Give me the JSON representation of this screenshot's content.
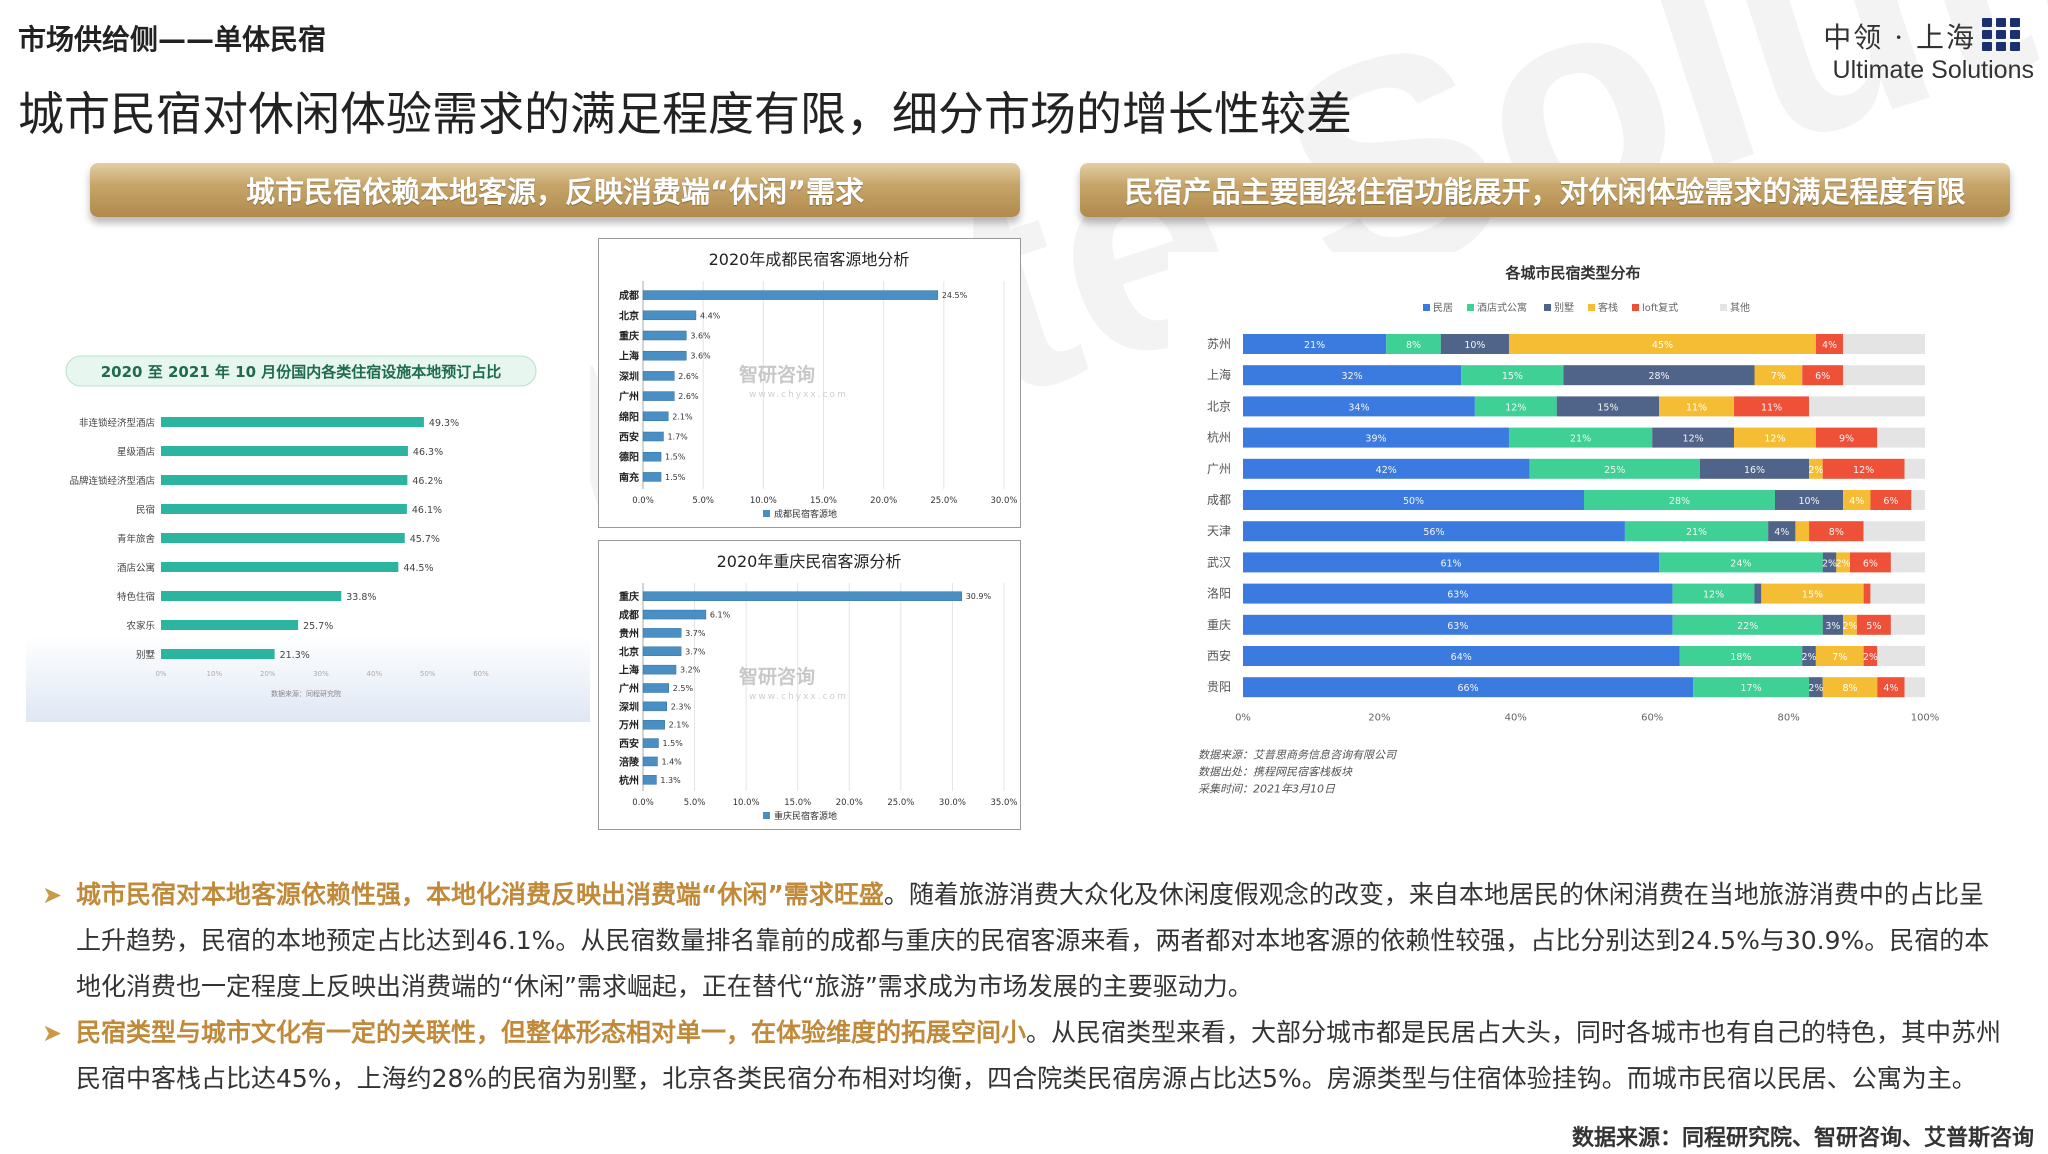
{
  "header": {
    "section": "市场供给侧——单体民宿",
    "logo_cn": "中领 · 上海",
    "logo_en": "Ultimate Solutions",
    "title": "城市民宿对休闲体验需求的满足程度有限，细分市场的增长性较差"
  },
  "watermark": "Ultimate Solutions",
  "banners": {
    "left": "城市民宿依赖本地客源，反映消费端“休闲”需求",
    "right": "民宿产品主要围绕住宿功能展开，对休闲体验需求的满足程度有限"
  },
  "colors": {
    "banner": "#c7a56a",
    "green_bar": "#2bb5a0",
    "blue_bar": "#4a8fc4",
    "accent_text": "#c08a3a"
  },
  "chart_data": [
    {
      "type": "bar",
      "orientation": "horizontal",
      "title": "2020 至 2021 年 10 月份国内各类住宿设施本地预订占比",
      "categories": [
        "非连锁经济型酒店",
        "星级酒店",
        "品牌连锁经济型酒店",
        "民宿",
        "青年旅舍",
        "酒店公寓",
        "特色住宿",
        "农家乐",
        "别墅"
      ],
      "values": [
        49.3,
        46.3,
        46.2,
        46.1,
        45.7,
        44.5,
        33.8,
        25.7,
        21.3
      ],
      "value_labels": [
        "49.3%",
        "46.3%",
        "46.2%",
        "46.1%",
        "45.7%",
        "44.5%",
        "33.8%",
        "25.7%",
        "21.3%"
      ],
      "xlim": [
        0,
        60
      ],
      "xticks": [
        "0%",
        "10%",
        "20%",
        "30%",
        "40%",
        "50%",
        "60%"
      ],
      "source": "数据来源：同程研究院",
      "color": "#2bb5a0"
    },
    {
      "type": "bar",
      "orientation": "horizontal",
      "title": "2020年成都民宿客源地分析",
      "categories": [
        "成都",
        "北京",
        "重庆",
        "上海",
        "深圳",
        "广州",
        "绵阳",
        "西安",
        "德阳",
        "南充"
      ],
      "values": [
        24.5,
        4.4,
        3.6,
        3.6,
        2.6,
        2.6,
        2.1,
        1.7,
        1.5,
        1.5
      ],
      "value_labels": [
        "24.5%",
        "4.4%",
        "3.6%",
        "3.6%",
        "2.6%",
        "2.6%",
        "2.1%",
        "1.7%",
        "1.5%",
        "1.5%"
      ],
      "xlim": [
        0,
        30
      ],
      "xticks": [
        "0.0%",
        "5.0%",
        "10.0%",
        "15.0%",
        "20.0%",
        "25.0%",
        "30.0%"
      ],
      "legend": "成都民宿客源地",
      "watermark_cn": "智研咨询",
      "watermark_url": "www.chyxx.com",
      "color": "#4a8fc4"
    },
    {
      "type": "bar",
      "orientation": "horizontal",
      "title": "2020年重庆民宿客源分析",
      "categories": [
        "重庆",
        "成都",
        "贵州",
        "北京",
        "上海",
        "广州",
        "深圳",
        "万州",
        "西安",
        "涪陵",
        "杭州"
      ],
      "values": [
        30.9,
        6.1,
        3.7,
        3.7,
        3.2,
        2.5,
        2.3,
        2.1,
        1.5,
        1.4,
        1.3
      ],
      "value_labels": [
        "30.9%",
        "6.1%",
        "3.7%",
        "3.7%",
        "3.2%",
        "2.5%",
        "2.3%",
        "2.1%",
        "1.5%",
        "1.4%",
        "1.3%"
      ],
      "xlim": [
        0,
        35
      ],
      "xticks": [
        "0.0%",
        "5.0%",
        "10.0%",
        "15.0%",
        "20.0%",
        "25.0%",
        "30.0%",
        "35.0%"
      ],
      "legend": "重庆民宿客源地",
      "watermark_cn": "智研咨询",
      "watermark_url": "www.chyxx.com",
      "color": "#4a8fc4"
    },
    {
      "type": "bar",
      "orientation": "horizontal",
      "stacked": true,
      "title": "各城市民宿类型分布",
      "categories": [
        "苏州",
        "上海",
        "北京",
        "杭州",
        "广州",
        "成都",
        "天津",
        "武汉",
        "洛阳",
        "重庆",
        "西安",
        "贵阳"
      ],
      "series": [
        {
          "name": "民居",
          "color": "#3b7be0",
          "values": [
            21,
            32,
            34,
            39,
            42,
            50,
            56,
            61,
            63,
            63,
            64,
            66
          ]
        },
        {
          "name": "酒店式公寓",
          "color": "#3ed095",
          "values": [
            8,
            15,
            12,
            21,
            25,
            28,
            21,
            24,
            12,
            22,
            18,
            17
          ]
        },
        {
          "name": "别墅",
          "color": "#4f6488",
          "values": [
            10,
            28,
            15,
            12,
            16,
            10,
            4,
            2,
            1,
            3,
            2,
            2
          ]
        },
        {
          "name": "客栈",
          "color": "#f5bd33",
          "values": [
            45,
            7,
            11,
            12,
            2,
            4,
            2,
            2,
            15,
            2,
            7,
            8
          ]
        },
        {
          "name": "loft复式",
          "color": "#ef5138",
          "values": [
            4,
            6,
            11,
            9,
            12,
            6,
            8,
            6,
            1,
            5,
            2,
            4
          ]
        },
        {
          "name": "其他",
          "color": "#e4e4e4",
          "values": [
            12,
            12,
            17,
            7,
            3,
            2,
            9,
            5,
            8,
            5,
            7,
            3
          ]
        }
      ],
      "series_labels": [
        [
          "21%",
          "32%",
          "34%",
          "39%",
          "42%",
          "50%",
          "56%",
          "61%",
          "63%",
          "63%",
          "64%",
          "66%"
        ],
        [
          "8%",
          "15%",
          "12%",
          "21%",
          "25%",
          "28%",
          "21%",
          "24%",
          "12%",
          "22%",
          "18%",
          "17%"
        ],
        [
          "10%",
          "28%",
          "15%",
          "12%",
          "16%",
          "10%",
          "4%",
          "2%",
          "",
          "3%",
          "2%",
          "2%"
        ],
        [
          "45%",
          "7%",
          "11%",
          "12%",
          "2%",
          "4%",
          "",
          "2%",
          "15%",
          "2%",
          "7%",
          "8%"
        ],
        [
          "4%",
          "6%",
          "11%",
          "9%",
          "12%",
          "6%",
          "8%",
          "6%",
          "",
          "5%",
          "2%",
          "4%"
        ],
        [
          "",
          "",
          "",
          "",
          "",
          "",
          "",
          "",
          "",
          "",
          "",
          ""
        ]
      ],
      "xlim": [
        0,
        100
      ],
      "xticks": [
        "0%",
        "20%",
        "40%",
        "60%",
        "80%",
        "100%"
      ],
      "source_lines": [
        "数据来源：艾普思商务信息咨询有限公司",
        "数据出处：携程网民宿客栈板块",
        "采集时间：2021年3月10日"
      ]
    }
  ],
  "bullets": [
    {
      "highlight": "城市民宿对本地客源依赖性强，本地化消费反映出消费端“休闲”需求旺盛",
      "text": "。随着旅游消费大众化及休闲度假观念的改变，来自本地居民的休闲消费在当地旅游消费中的占比呈上升趋势，民宿的本地预定占比达到46.1%。从民宿数量排名靠前的成都与重庆的民宿客源来看，两者都对本地客源的依赖性较强，占比分别达到24.5%与30.9%。民宿的本地化消费也一定程度上反映出消费端的“休闲”需求崛起，正在替代“旅游”需求成为市场发展的主要驱动力。"
    },
    {
      "highlight": "民宿类型与城市文化有一定的关联性，但整体形态相对单一，在体验维度的拓展空间小",
      "text": "。从民宿类型来看，大部分城市都是民居占大头，同时各城市也有自己的特色，其中苏州民宿中客栈占比达45%，上海约28%的民宿为别墅，北京各类民宿分布相对均衡，四合院类民宿房源占比达5%。房源类型与住宿体验挂钩。而城市民宿以民居、公寓为主。"
    }
  ],
  "footer": {
    "source": "数据来源：同程研究院、智研咨询、艾普斯咨询"
  }
}
